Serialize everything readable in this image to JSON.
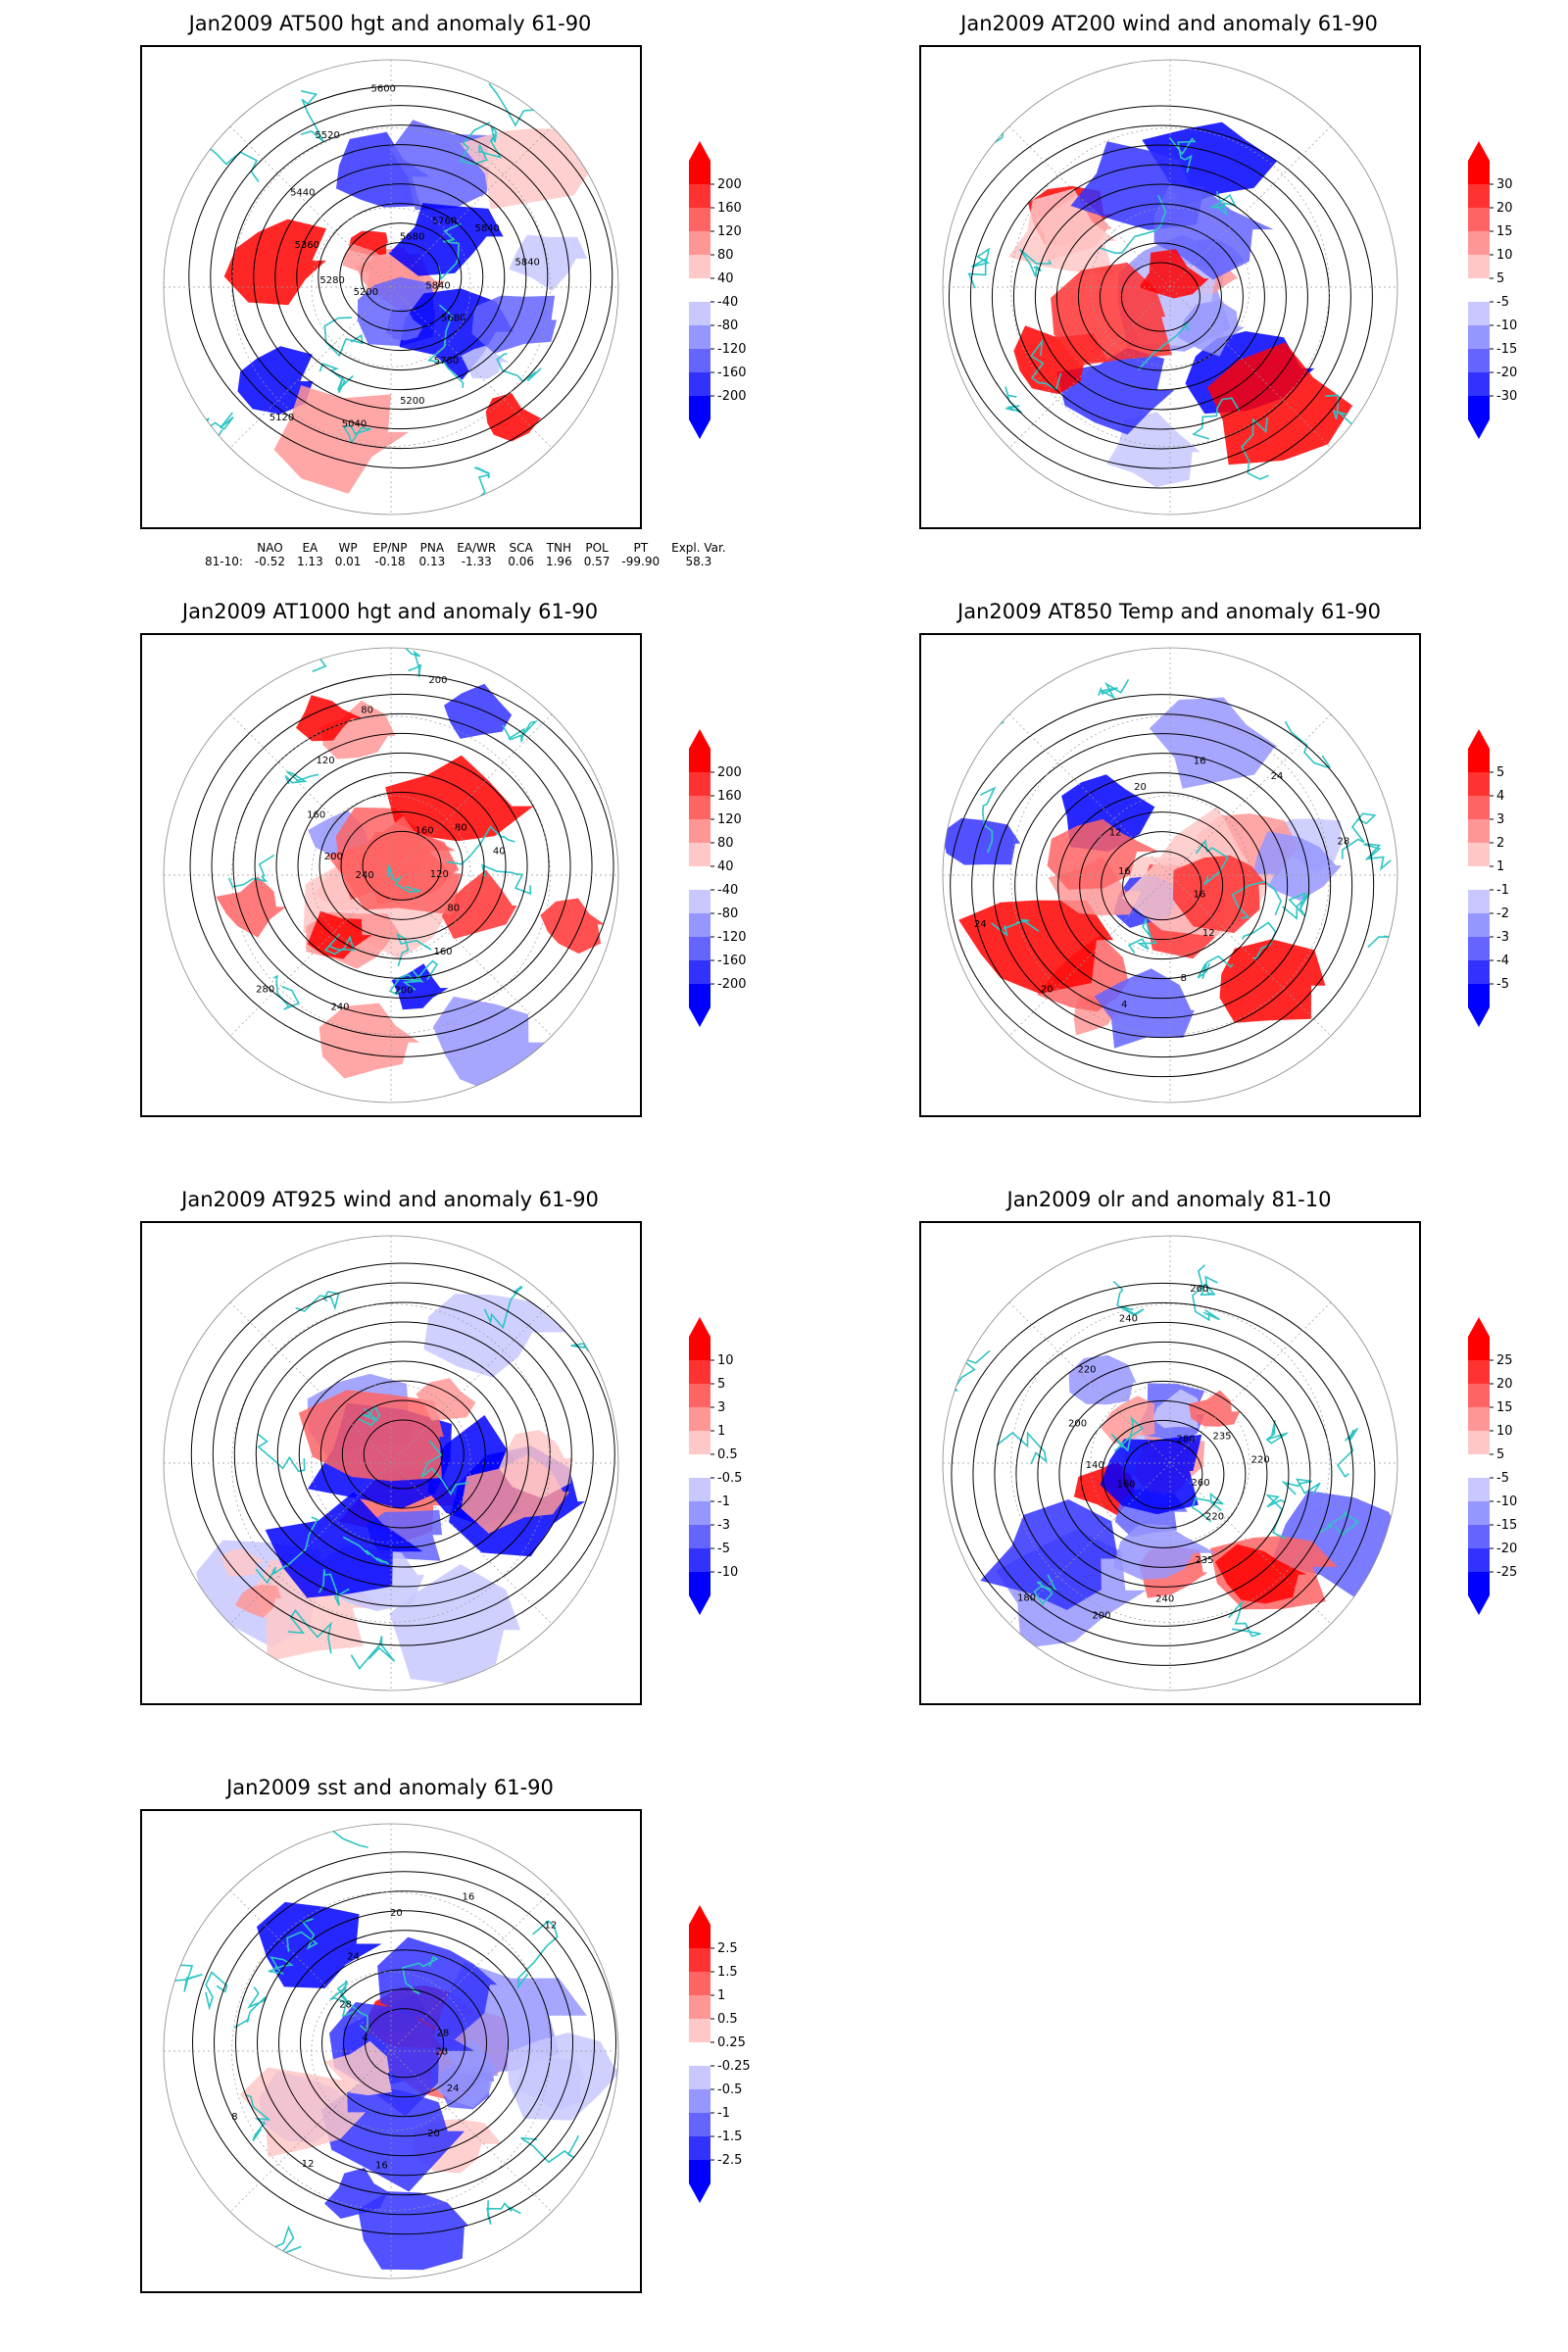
{
  "panels": [
    {
      "id": "p1",
      "title": "Jan2009 AT500 hgt and anomaly 61-90",
      "colorbar": [
        "200",
        "160",
        "120",
        "80",
        "40",
        "-40",
        "-80",
        "-120",
        "-160",
        "-200"
      ],
      "contour_labels": [
        "5840",
        "5680",
        "5760",
        "5200",
        "5040",
        "5120",
        "5200",
        "5280",
        "5360",
        "5440",
        "5520",
        "5600",
        "5680",
        "5760",
        "5840",
        "5840"
      ]
    },
    {
      "id": "p2",
      "title": "Jan2009 AT200 wind and anomaly 61-90",
      "colorbar": [
        "30",
        "20",
        "15",
        "10",
        "5",
        "-5",
        "-10",
        "-15",
        "-20",
        "-30"
      ],
      "contour_labels": []
    },
    {
      "id": "p3",
      "title": "Jan2009 AT1000 hgt and anomaly 61-90",
      "colorbar": [
        "200",
        "160",
        "120",
        "80",
        "40",
        "-40",
        "-80",
        "-120",
        "-160",
        "-200"
      ],
      "contour_labels": [
        "120",
        "80",
        "160",
        "200",
        "240",
        "280",
        "240",
        "200",
        "160",
        "120",
        "80",
        "200",
        "160",
        "80",
        "40"
      ]
    },
    {
      "id": "p4",
      "title": "Jan2009 AT850 Temp and anomaly 61-90",
      "colorbar": [
        "5",
        "4",
        "3",
        "2",
        "1",
        "-1",
        "-2",
        "-3",
        "-4",
        "-5"
      ],
      "contour_labels": [
        "16",
        "12",
        "8",
        "4",
        "20",
        "24",
        "16",
        "12",
        "20",
        "16",
        "24",
        "28"
      ]
    },
    {
      "id": "p5",
      "title": "Jan2009 AT925 wind and anomaly 61-90",
      "colorbar": [
        "10",
        "5",
        "3",
        "1",
        "0.5",
        "-0.5",
        "-1",
        "-3",
        "-5",
        "-10"
      ],
      "contour_labels": []
    },
    {
      "id": "p6",
      "title": "Jan2009 olr and anomaly 81-10",
      "colorbar": [
        "25",
        "20",
        "15",
        "10",
        "5",
        "-5",
        "-10",
        "-15",
        "-20",
        "-25"
      ],
      "contour_labels": [
        "260",
        "220",
        "235",
        "240",
        "200",
        "180",
        "160",
        "140",
        "200",
        "220",
        "240",
        "260",
        "280",
        "235",
        "220"
      ]
    },
    {
      "id": "p7",
      "title": "Jan2009 sst and anomaly 61-90",
      "colorbar": [
        "2.5",
        "1.5",
        "1",
        "0.5",
        "0.25",
        "-0.25",
        "-0.5",
        "-1",
        "-1.5",
        "-2.5"
      ],
      "contour_labels": [
        "28",
        "24",
        "20",
        "16",
        "12",
        "8",
        "4",
        "28",
        "24",
        "20",
        "16",
        "12",
        "28"
      ]
    }
  ],
  "index_table": {
    "headers": [
      "NAO",
      "EA",
      "WP",
      "EP/NP",
      "PNA",
      "EA/WR",
      "SCA",
      "TNH",
      "POL",
      "PT",
      "Expl. Var."
    ],
    "row_label": "81-10:",
    "values": [
      "-0.52",
      "1.13",
      "0.01",
      "-0.18",
      "0.13",
      "-1.33",
      "0.06",
      "1.96",
      "0.57",
      "-99.90",
      "58.3"
    ]
  },
  "colors": {
    "positive": [
      "#ff0000",
      "#ff3232",
      "#ff6464",
      "#ff9696",
      "#ffc8c8"
    ],
    "negative": [
      "#c8c8ff",
      "#9696ff",
      "#6464ff",
      "#3232ff",
      "#0000ff"
    ],
    "coast": "#2ec4c4",
    "contour": "#000000"
  }
}
